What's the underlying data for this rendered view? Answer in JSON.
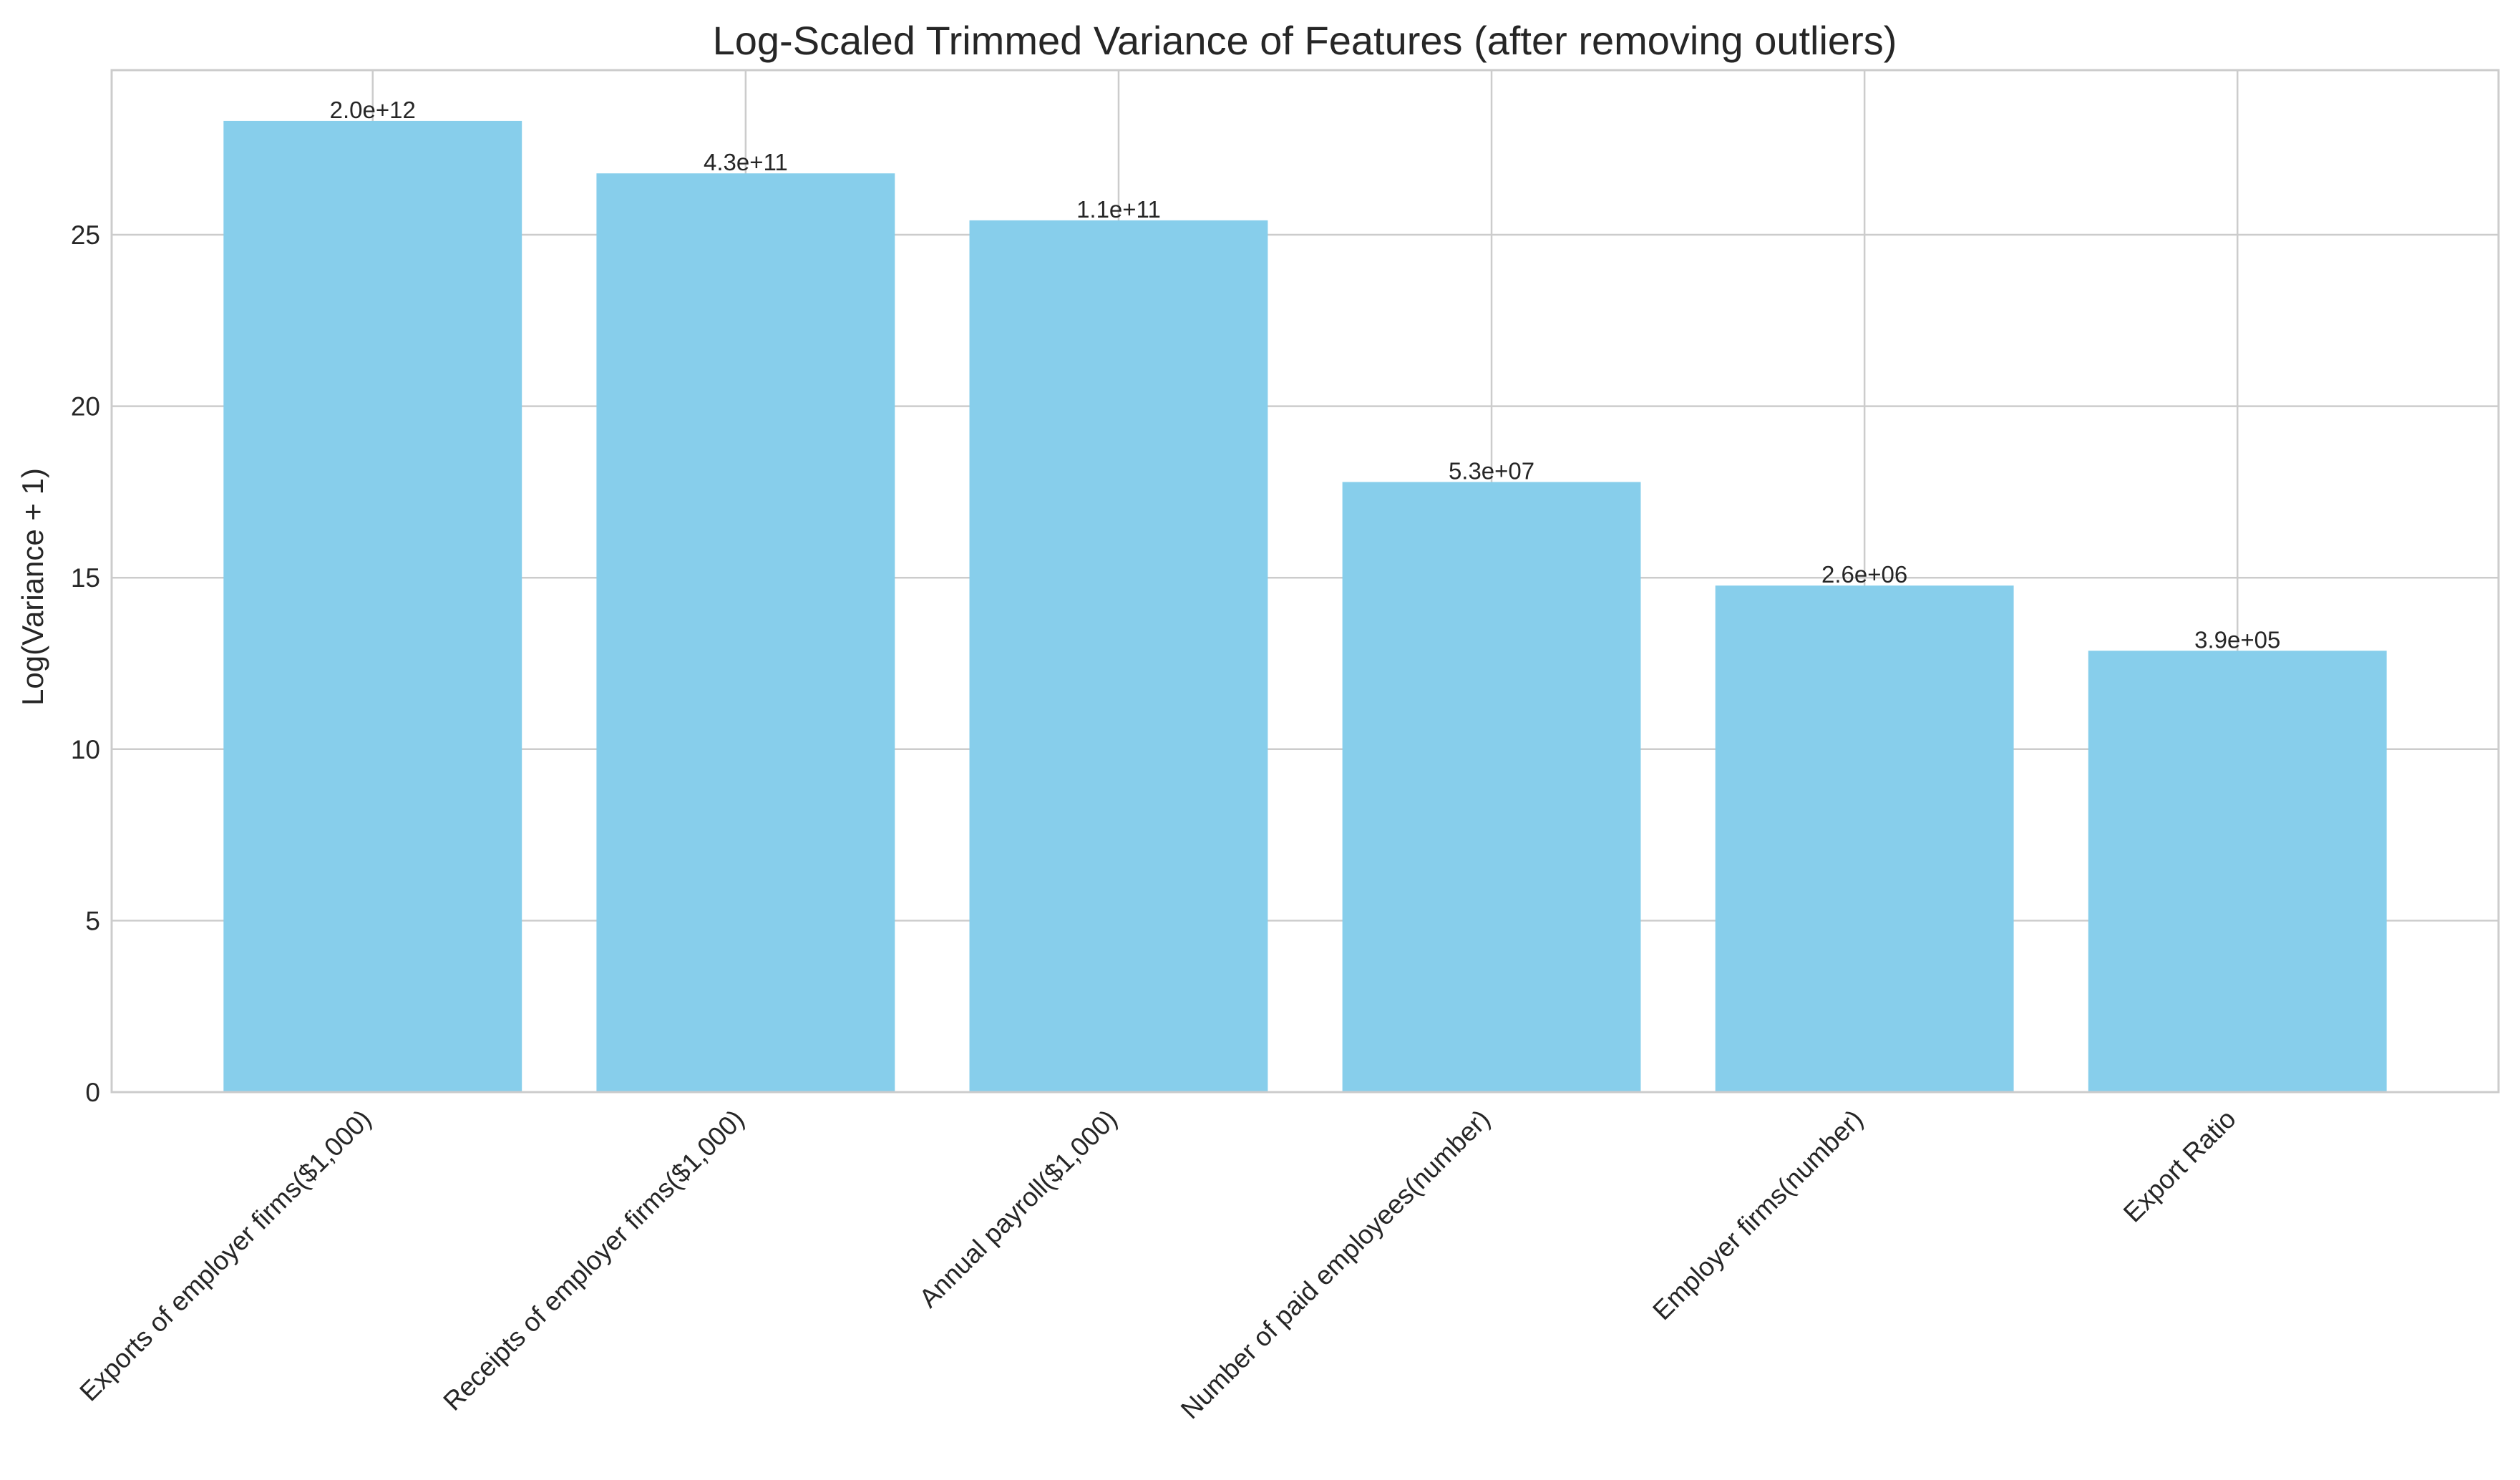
{
  "chart_data": {
    "type": "bar",
    "title": "Log-Scaled Trimmed Variance of Features (after removing outliers)",
    "xlabel": "",
    "ylabel": "Log(Variance + 1)",
    "categories": [
      "Exports of employer firms($1,000)",
      "Receipts of employer firms($1,000)",
      "Annual payroll($1,000)",
      "Number of paid employees(number)",
      "Employer firms(number)",
      "Export Ratio"
    ],
    "values": [
      28.32,
      26.79,
      25.42,
      17.79,
      14.77,
      12.87
    ],
    "data_labels": [
      "2.0e+12",
      "4.3e+11",
      "1.1e+11",
      "5.3e+07",
      "2.6e+06",
      "3.9e+05"
    ],
    "ylim": [
      0,
      29.8
    ],
    "yticks": [
      0,
      5,
      10,
      15,
      20,
      25
    ],
    "grid": true,
    "bar_color": "#87ceeb"
  }
}
